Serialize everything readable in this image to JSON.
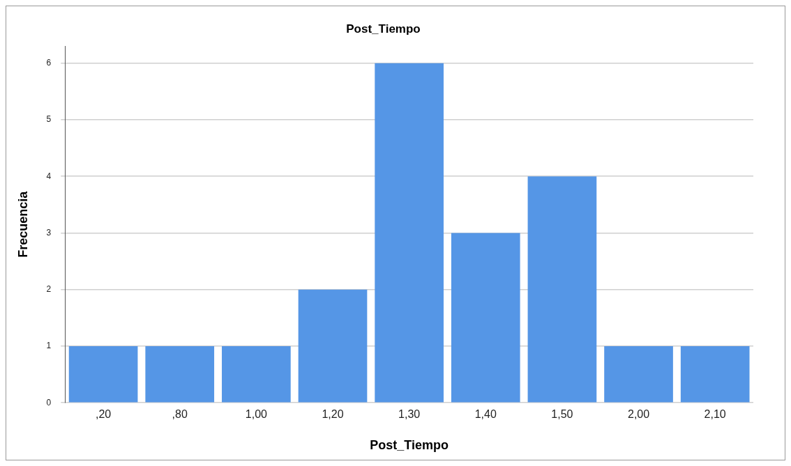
{
  "chart_data": {
    "type": "bar",
    "title": "Post_Tiempo",
    "xlabel": "Post_Tiempo",
    "ylabel": "Frecuencia",
    "categories": [
      ",20",
      ",80",
      "1,00",
      "1,20",
      "1,30",
      "1,40",
      "1,50",
      "2,00",
      "2,10"
    ],
    "values": [
      1,
      1,
      1,
      2,
      6,
      3,
      4,
      1,
      1
    ],
    "color": "#5596e6",
    "ylim": [
      0,
      6.3
    ],
    "yticks": [
      0,
      1,
      2,
      3,
      4,
      5,
      6
    ],
    "grid": "y"
  }
}
